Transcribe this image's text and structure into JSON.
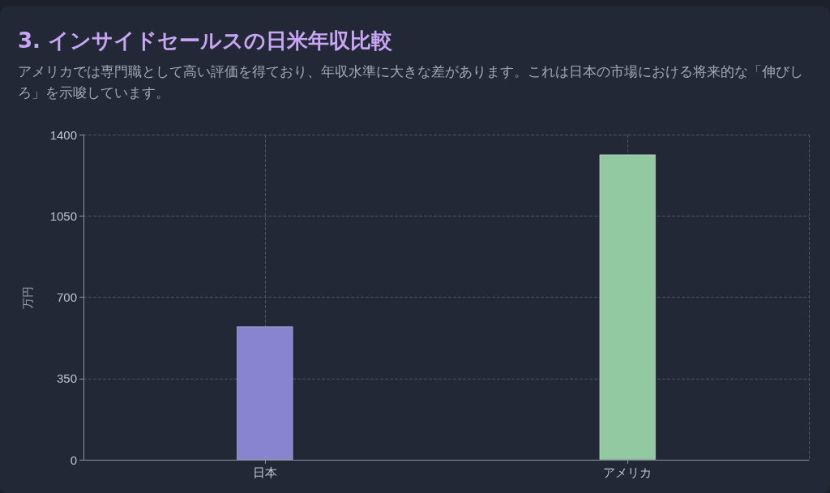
{
  "chart_data": {
    "type": "bar",
    "title": "3. インサイドセールスの日米年収比較",
    "subtitle": "アメリカでは専門職として高い評価を得ており、年収水準に大きな差があります。これは日本の市場における将来的な「伸びしろ」を示唆しています。",
    "ylabel": "万円",
    "categories": [
      "日本",
      "アメリカ"
    ],
    "values": [
      575,
      1315
    ],
    "colors": [
      "#8884d0",
      "#93c9a0"
    ],
    "ylim": [
      0,
      1400
    ],
    "yticks": [
      0,
      350,
      700,
      1050,
      1400
    ],
    "grid": true
  }
}
